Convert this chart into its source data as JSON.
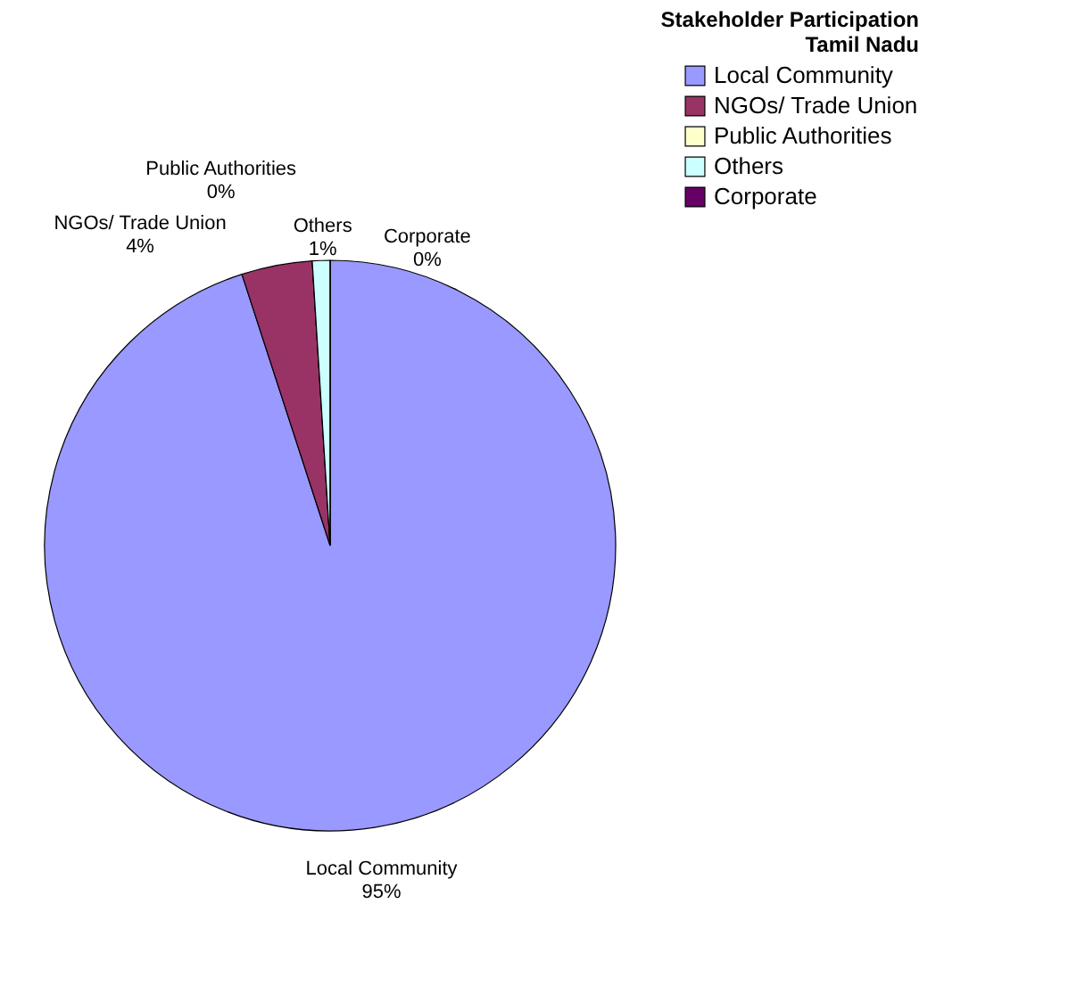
{
  "chart_data": {
    "type": "pie",
    "title": [
      "Stakeholder Participation",
      "Tamil Nadu"
    ],
    "categories": [
      "Local Community",
      "NGOs/ Trade Union",
      "Public Authorities",
      "Others",
      "Corporate"
    ],
    "values": [
      95,
      4,
      0,
      1,
      0
    ],
    "value_labels": [
      "95%",
      "4%",
      "0%",
      "1%",
      "0%"
    ],
    "colors": [
      "#9999ff",
      "#993366",
      "#ffffcc",
      "#ccffff",
      "#660066"
    ],
    "legend": "right"
  }
}
